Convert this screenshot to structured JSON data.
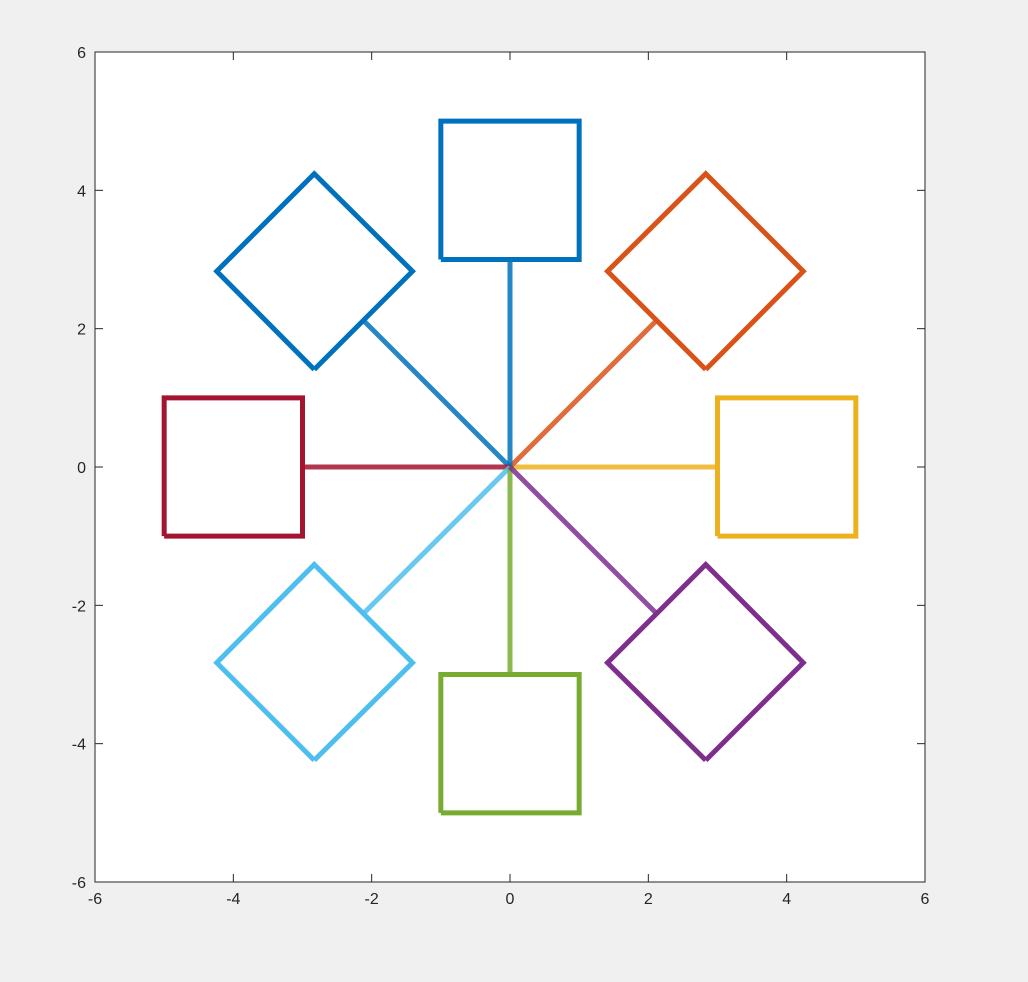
{
  "chart_data": {
    "type": "line",
    "title": "",
    "xlabel": "",
    "ylabel": "",
    "xlim": [
      -6,
      6
    ],
    "ylim": [
      -6,
      6
    ],
    "grid": false,
    "legend": "none",
    "x_ticks": [
      "-6",
      "-4",
      "-2",
      "0",
      "2",
      "4",
      "6"
    ],
    "y_ticks": [
      "-6",
      "-4",
      "-2",
      "0",
      "2",
      "4",
      "6"
    ],
    "series": [
      {
        "angle_deg": 0,
        "color": "#EDB120",
        "spoke": [
          [
            0,
            0
          ],
          [
            3,
            0
          ]
        ],
        "outline": [
          [
            3,
            -1
          ],
          [
            5,
            -1
          ],
          [
            5,
            1
          ],
          [
            3,
            1
          ],
          [
            3,
            -1
          ]
        ]
      },
      {
        "angle_deg": 45,
        "color": "#D95319",
        "spoke": [
          [
            0,
            0
          ],
          [
            2.12,
            2.12
          ]
        ],
        "outline": [
          [
            2.83,
            1.41
          ],
          [
            4.24,
            2.83
          ],
          [
            2.83,
            4.24
          ],
          [
            1.41,
            2.83
          ],
          [
            2.83,
            1.41
          ]
        ]
      },
      {
        "angle_deg": 90,
        "color": "#0072BD",
        "spoke": [
          [
            0,
            0
          ],
          [
            0,
            3
          ]
        ],
        "outline": [
          [
            -1,
            3
          ],
          [
            1,
            3
          ],
          [
            1,
            5
          ],
          [
            -1,
            5
          ],
          [
            -1,
            3
          ]
        ]
      },
      {
        "angle_deg": 135,
        "color": "#0072BD",
        "spoke": [
          [
            0,
            0
          ],
          [
            -2.12,
            2.12
          ]
        ],
        "outline": [
          [
            -2.83,
            1.41
          ],
          [
            -1.41,
            2.83
          ],
          [
            -2.83,
            4.24
          ],
          [
            -4.24,
            2.83
          ],
          [
            -2.83,
            1.41
          ]
        ]
      },
      {
        "angle_deg": 180,
        "color": "#A2142F",
        "spoke": [
          [
            0,
            0
          ],
          [
            -3,
            0
          ]
        ],
        "outline": [
          [
            -5,
            -1
          ],
          [
            -3,
            -1
          ],
          [
            -3,
            1
          ],
          [
            -5,
            1
          ],
          [
            -5,
            -1
          ]
        ]
      },
      {
        "angle_deg": 225,
        "color": "#4DBEEE",
        "spoke": [
          [
            0,
            0
          ],
          [
            -2.12,
            -2.12
          ]
        ],
        "outline": [
          [
            -2.83,
            -4.24
          ],
          [
            -1.41,
            -2.83
          ],
          [
            -2.83,
            -1.41
          ],
          [
            -4.24,
            -2.83
          ],
          [
            -2.83,
            -4.24
          ]
        ]
      },
      {
        "angle_deg": 270,
        "color": "#77AC30",
        "spoke": [
          [
            0,
            0
          ],
          [
            0,
            -3
          ]
        ],
        "outline": [
          [
            -1,
            -5
          ],
          [
            1,
            -5
          ],
          [
            1,
            -3
          ],
          [
            -1,
            -3
          ],
          [
            -1,
            -5
          ]
        ]
      },
      {
        "angle_deg": 315,
        "color": "#7E2F8E",
        "spoke": [
          [
            0,
            0
          ],
          [
            2.12,
            -2.12
          ]
        ],
        "outline": [
          [
            2.83,
            -4.24
          ],
          [
            4.24,
            -2.83
          ],
          [
            2.83,
            -1.41
          ],
          [
            1.41,
            -2.83
          ],
          [
            2.83,
            -4.24
          ]
        ]
      }
    ]
  }
}
